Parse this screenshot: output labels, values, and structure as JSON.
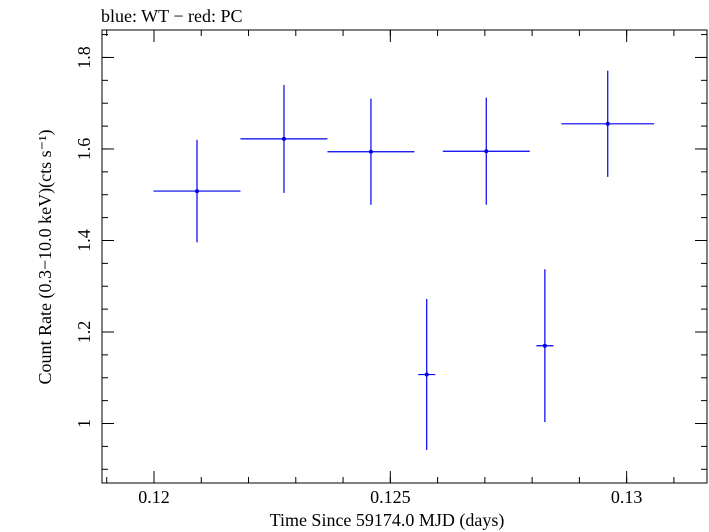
{
  "chart_data": {
    "type": "scatter",
    "title": "blue: WT − red: PC",
    "xlabel": "Time Since 59174.0 MJD (days)",
    "ylabel": "Count Rate (0.3−10.0 keV)(cts s⁻¹)",
    "xlim": [
      0.1189,
      0.1317
    ],
    "ylim": [
      0.87,
      1.86
    ],
    "xticks": [
      0.12,
      0.125,
      0.13
    ],
    "xtick_labels": [
      "0.12",
      "0.125",
      "0.13"
    ],
    "yticks": [
      1.0,
      1.2,
      1.4,
      1.6,
      1.8
    ],
    "ytick_labels": [
      "1",
      "1.2",
      "1.4",
      "1.6",
      "1.8"
    ],
    "series": [
      {
        "color": "#0000ee",
        "points": [
          {
            "x": 0.12091,
            "xerr": 0.00092,
            "y": 1.508,
            "yerr": 0.112
          },
          {
            "x": 0.12275,
            "xerr": 0.00092,
            "y": 1.622,
            "yerr": 0.118
          },
          {
            "x": 0.12459,
            "xerr": 0.00092,
            "y": 1.594,
            "yerr": 0.116
          },
          {
            "x": 0.12577,
            "xerr": 0.00018,
            "y": 1.107,
            "yerr": 0.165
          },
          {
            "x": 0.12703,
            "xerr": 0.00092,
            "y": 1.595,
            "yerr": 0.117
          },
          {
            "x": 0.12827,
            "xerr": 0.00018,
            "y": 1.17,
            "yerr": 0.167
          },
          {
            "x": 0.1296,
            "xerr": 0.00098,
            "y": 1.655,
            "yerr": 0.116
          }
        ]
      }
    ]
  }
}
